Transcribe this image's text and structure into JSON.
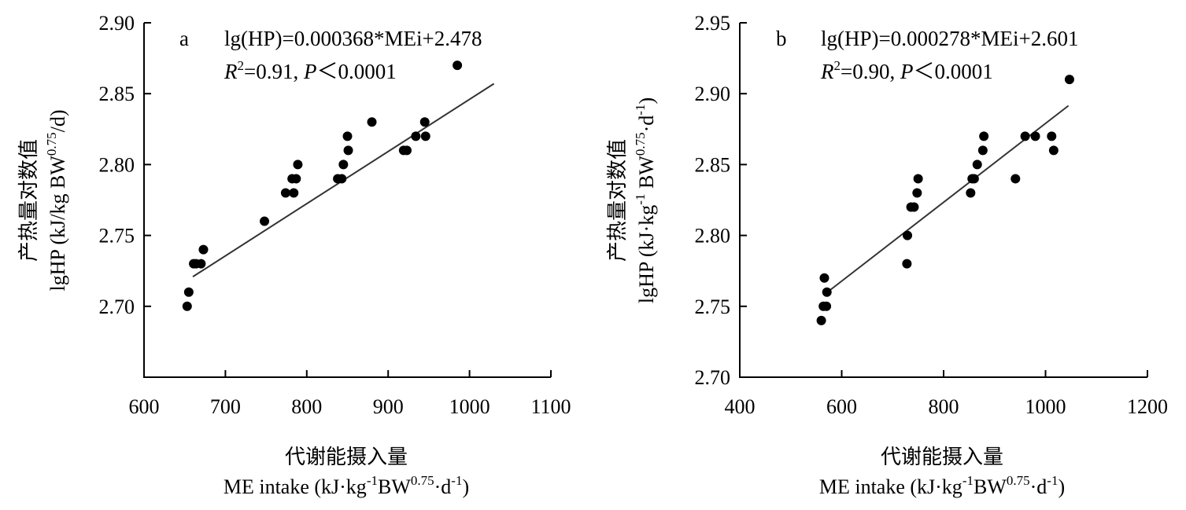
{
  "chart_data": [
    {
      "type": "scatter",
      "panel_label": "a",
      "equation": "lg(HP)=0.000368*MEi+2.478",
      "r2_prefix": "R",
      "r2_sup": "2",
      "r2_value": "=0.91, ",
      "p_prefix": "P",
      "p_value": "＜0.0001",
      "xlabel_cn": "代谢能摄入量",
      "xlabel_en": {
        "pre": "ME intake (kJ·kg",
        "s1": "-1",
        "mid": "BW",
        "s2": "0.75",
        "mid2": "·d",
        "s3": "-1",
        "post": ")"
      },
      "ylabel_cn": "产热量对数值",
      "ylabel_en": {
        "pre": "lgHP (kJ/kg BW",
        "s1": "0.75",
        "mid": "/d)",
        "s2": "",
        "mid2": "",
        "s3": "",
        "post": ""
      },
      "xlim": [
        600,
        1100
      ],
      "ylim": [
        2.65,
        2.9
      ],
      "xticks": [
        "600",
        "700",
        "800",
        "900",
        "1000",
        "1100"
      ],
      "yticks": [
        "2.70",
        "2.75",
        "2.80",
        "2.85",
        "2.90"
      ],
      "fit": {
        "slope": 0.000368,
        "intercept": 2.478,
        "x_range": [
          660,
          1030
        ]
      },
      "points": [
        [
          653,
          2.7
        ],
        [
          655,
          2.71
        ],
        [
          661,
          2.73
        ],
        [
          664,
          2.73
        ],
        [
          670,
          2.73
        ],
        [
          673,
          2.74
        ],
        [
          748,
          2.76
        ],
        [
          774,
          2.78
        ],
        [
          782,
          2.79
        ],
        [
          784,
          2.78
        ],
        [
          787,
          2.79
        ],
        [
          789,
          2.8
        ],
        [
          838,
          2.79
        ],
        [
          843,
          2.79
        ],
        [
          845,
          2.8
        ],
        [
          850,
          2.82
        ],
        [
          851,
          2.81
        ],
        [
          880,
          2.83
        ],
        [
          919,
          2.81
        ],
        [
          923,
          2.81
        ],
        [
          934,
          2.82
        ],
        [
          945,
          2.83
        ],
        [
          946,
          2.82
        ],
        [
          985,
          2.87
        ]
      ]
    },
    {
      "type": "scatter",
      "panel_label": "b",
      "equation": "lg(HP)=0.000278*MEi+2.601",
      "r2_prefix": "R",
      "r2_sup": "2",
      "r2_value": "=0.90, ",
      "p_prefix": "P",
      "p_value": "＜0.0001",
      "xlabel_cn": "代谢能摄入量",
      "xlabel_en": {
        "pre": "ME intake (kJ·kg",
        "s1": "-1",
        "mid": "BW",
        "s2": "0.75",
        "mid2": "·d",
        "s3": "-1",
        "post": ")"
      },
      "ylabel_cn": "产热量对数值",
      "ylabel_en": {
        "pre": "lgHP (kJ·kg",
        "s1": "-1",
        "mid": " BW",
        "s2": "0.75",
        "mid2": "·d",
        "s3": "-1",
        "post": ")"
      },
      "xlim": [
        400,
        1200
      ],
      "ylim": [
        2.7,
        2.95
      ],
      "xticks": [
        "400",
        "600",
        "800",
        "1000",
        "1200"
      ],
      "yticks": [
        "2.70",
        "2.75",
        "2.80",
        "2.85",
        "2.90",
        "2.95"
      ],
      "fit": {
        "slope": 0.000278,
        "intercept": 2.601,
        "x_range": [
          570,
          1045
        ]
      },
      "points": [
        [
          560,
          2.74
        ],
        [
          564,
          2.75
        ],
        [
          566,
          2.77
        ],
        [
          570,
          2.75
        ],
        [
          571,
          2.76
        ],
        [
          728,
          2.78
        ],
        [
          729,
          2.8
        ],
        [
          736,
          2.82
        ],
        [
          742,
          2.82
        ],
        [
          748,
          2.83
        ],
        [
          750,
          2.84
        ],
        [
          853,
          2.83
        ],
        [
          856,
          2.84
        ],
        [
          860,
          2.84
        ],
        [
          866,
          2.85
        ],
        [
          877,
          2.86
        ],
        [
          879,
          2.87
        ],
        [
          941,
          2.84
        ],
        [
          960,
          2.87
        ],
        [
          980,
          2.87
        ],
        [
          1012,
          2.87
        ],
        [
          1016,
          2.86
        ],
        [
          1047,
          2.91
        ]
      ]
    }
  ]
}
